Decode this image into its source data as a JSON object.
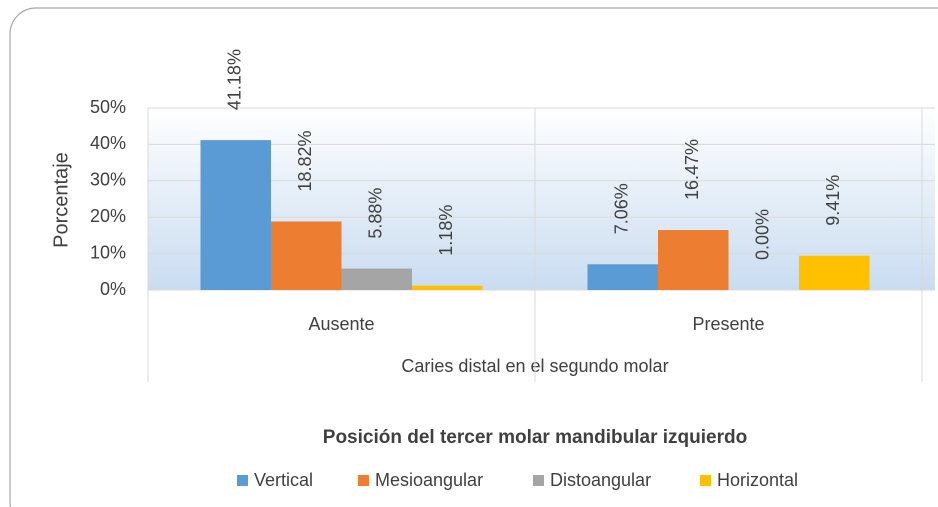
{
  "chart_data": {
    "type": "bar",
    "y_label": "Porcentaje",
    "x_label": "Caries distal en el segundo molar",
    "legend_title": "Posición del tercer molar mandibular izquierdo",
    "categories": [
      "Ausente",
      "Presente"
    ],
    "series": [
      {
        "name": "Vertical",
        "color": "#5b9bd5",
        "values": [
          41.18,
          7.06
        ],
        "value_labels": [
          "41.18%",
          "7.06%"
        ]
      },
      {
        "name": "Mesioangular",
        "color": "#ed7d31",
        "values": [
          18.82,
          16.47
        ],
        "value_labels": [
          "18.82%",
          "16.47%"
        ]
      },
      {
        "name": "Distoangular",
        "color": "#a5a5a5",
        "values": [
          5.88,
          0
        ],
        "value_labels": [
          "5.88%",
          "0.00%"
        ]
      },
      {
        "name": "Horizontal",
        "color": "#ffc000",
        "values": [
          1.18,
          9.41
        ],
        "value_labels": [
          "1.18%",
          "9.41%"
        ]
      }
    ],
    "ylim": [
      0,
      50
    ],
    "yticks": [
      {
        "value": 0,
        "label": "0%"
      },
      {
        "value": 10,
        "label": "10%"
      },
      {
        "value": 20,
        "label": "20%"
      },
      {
        "value": 30,
        "label": "30%"
      },
      {
        "value": 40,
        "label": "40%"
      },
      {
        "value": 50,
        "label": "50%"
      }
    ],
    "grid": true,
    "legend": "bottom"
  }
}
